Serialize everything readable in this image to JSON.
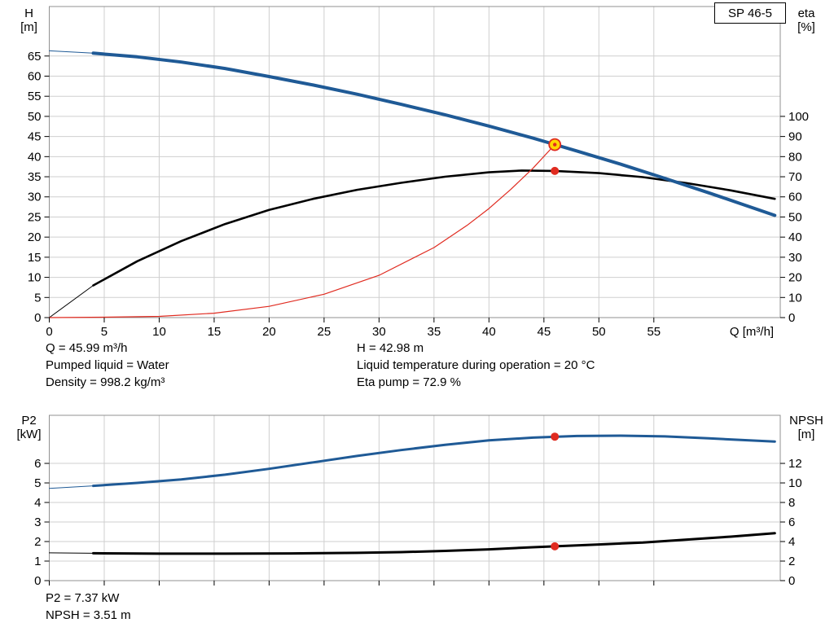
{
  "window": {
    "pump_model": "SP 46-5"
  },
  "colors": {
    "curve_blue": "#1f5a96",
    "curve_black": "#000000",
    "curve_red": "#e02b20",
    "dot_red": "#e02b20",
    "op_fill": "#ffd800",
    "grid": "#cfcfcf",
    "frame": "#909090",
    "axis_tick": "#000000"
  },
  "info_top": {
    "left": [
      "Q = 45.99 m³/h",
      "Pumped liquid = Water",
      "Density = 998.2 kg/m³"
    ],
    "right": [
      "H = 42.98 m",
      "Liquid temperature during operation = 20 °C",
      "Eta pump = 72.9 %"
    ]
  },
  "info_bottom": {
    "lines": [
      "P2 = 7.37 kW",
      "NPSH = 3.51 m"
    ]
  },
  "chart_data": [
    {
      "type": "line",
      "title": "SP 46-5",
      "x_axis": {
        "label": "Q [m³/h]",
        "min": 0,
        "max": 66.5,
        "ticks": [
          0,
          5,
          10,
          15,
          20,
          25,
          30,
          35,
          40,
          45,
          50,
          55
        ],
        "show_labels": true
      },
      "y_left": {
        "label": [
          "H",
          "[m]"
        ],
        "min": 0,
        "max": 77.3,
        "ticks": [
          0,
          5,
          10,
          15,
          20,
          25,
          30,
          35,
          40,
          45,
          50,
          55,
          60,
          65
        ]
      },
      "y_right": {
        "label": [
          "eta",
          "[%]"
        ],
        "ticks": [
          0,
          10,
          20,
          30,
          40,
          50,
          60,
          70,
          80,
          90,
          100
        ],
        "to_left": 0.5
      },
      "series": [
        {
          "name": "eta-curve-lead",
          "axis": "right",
          "color": "curve_black",
          "width": 1,
          "points": [
            [
              0,
              0
            ],
            [
              4,
              16
            ]
          ]
        },
        {
          "name": "eta-curve",
          "axis": "right",
          "color": "curve_black",
          "width": 2.6,
          "points": [
            [
              4,
              16
            ],
            [
              8,
              28
            ],
            [
              12,
              38
            ],
            [
              16,
              46.5
            ],
            [
              20,
              53.5
            ],
            [
              24,
              59
            ],
            [
              28,
              63.5
            ],
            [
              32,
              67
            ],
            [
              36,
              70
            ],
            [
              40,
              72.2
            ],
            [
              43,
              73.1
            ],
            [
              46,
              72.9
            ],
            [
              50,
              71.8
            ],
            [
              54,
              69.8
            ],
            [
              58,
              66.8
            ],
            [
              62,
              63.2
            ],
            [
              66,
              59
            ]
          ]
        },
        {
          "name": "system-curve",
          "axis": "left",
          "color": "curve_red",
          "width": 1.2,
          "points": [
            [
              0,
              0
            ],
            [
              5,
              0.1
            ],
            [
              10,
              0.3
            ],
            [
              15,
              1.1
            ],
            [
              20,
              2.8
            ],
            [
              25,
              5.8
            ],
            [
              30,
              10.5
            ],
            [
              35,
              17.4
            ],
            [
              38,
              22.9
            ],
            [
              40,
              27.1
            ],
            [
              42,
              31.9
            ],
            [
              44,
              37.1
            ],
            [
              45.99,
              42.98
            ]
          ]
        },
        {
          "name": "head-curve-lead",
          "axis": "left",
          "color": "curve_blue",
          "width": 1,
          "points": [
            [
              0,
              66.3
            ],
            [
              4,
              65.7
            ]
          ]
        },
        {
          "name": "head-curve",
          "axis": "left",
          "color": "curve_blue",
          "width": 4,
          "points": [
            [
              4,
              65.7
            ],
            [
              8,
              64.8
            ],
            [
              12,
              63.5
            ],
            [
              16,
              61.9
            ],
            [
              20,
              59.9
            ],
            [
              24,
              57.8
            ],
            [
              28,
              55.5
            ],
            [
              32,
              53
            ],
            [
              36,
              50.4
            ],
            [
              40,
              47.6
            ],
            [
              44,
              44.6
            ],
            [
              46,
              43
            ],
            [
              48,
              41.4
            ],
            [
              52,
              38.1
            ],
            [
              56,
              34.6
            ],
            [
              60,
              31
            ],
            [
              63,
              28.2
            ],
            [
              66,
              25.4
            ]
          ]
        }
      ],
      "markers": [
        {
          "name": "eta-point",
          "kind": "dot",
          "axis": "right",
          "x": 45.99,
          "y": 72.9
        },
        {
          "name": "duty-point",
          "kind": "duty",
          "axis": "left",
          "x": 45.99,
          "y": 42.98
        }
      ]
    },
    {
      "type": "line",
      "title": "P2 / NPSH",
      "x_axis": {
        "label": "",
        "min": 0,
        "max": 66.5,
        "ticks": [
          0,
          5,
          10,
          15,
          20,
          25,
          30,
          35,
          40,
          45,
          50,
          55
        ],
        "show_labels": false
      },
      "y_left": {
        "label": [
          "P2",
          "[kW]"
        ],
        "min": 0,
        "max": 8.46,
        "ticks": [
          0,
          1,
          2,
          3,
          4,
          5,
          6
        ]
      },
      "y_right": {
        "label": [
          "NPSH",
          "[m]"
        ],
        "ticks": [
          0,
          2,
          4,
          6,
          8,
          10,
          12
        ],
        "to_left": 0.5
      },
      "series": [
        {
          "name": "npsh-curve-lead",
          "axis": "right",
          "color": "curve_black",
          "width": 1,
          "points": [
            [
              0,
              2.84
            ],
            [
              4,
              2.8
            ]
          ]
        },
        {
          "name": "npsh-curve",
          "axis": "right",
          "color": "curve_black",
          "width": 3,
          "points": [
            [
              4,
              2.8
            ],
            [
              10,
              2.76
            ],
            [
              16,
              2.76
            ],
            [
              22,
              2.78
            ],
            [
              28,
              2.84
            ],
            [
              32,
              2.92
            ],
            [
              36,
              3.04
            ],
            [
              40,
              3.2
            ],
            [
              44,
              3.42
            ],
            [
              46,
              3.51
            ],
            [
              50,
              3.7
            ],
            [
              54,
              3.9
            ],
            [
              58,
              4.2
            ],
            [
              62,
              4.5
            ],
            [
              66,
              4.85
            ]
          ]
        },
        {
          "name": "p2-curve-lead",
          "axis": "left",
          "color": "curve_blue",
          "width": 1,
          "points": [
            [
              0,
              4.72
            ],
            [
              4,
              4.85
            ]
          ]
        },
        {
          "name": "p2-curve",
          "axis": "left",
          "color": "curve_blue",
          "width": 3,
          "points": [
            [
              4,
              4.85
            ],
            [
              8,
              5
            ],
            [
              12,
              5.18
            ],
            [
              16,
              5.42
            ],
            [
              20,
              5.72
            ],
            [
              24,
              6.05
            ],
            [
              28,
              6.38
            ],
            [
              32,
              6.68
            ],
            [
              36,
              6.95
            ],
            [
              40,
              7.18
            ],
            [
              44,
              7.32
            ],
            [
              48,
              7.4
            ],
            [
              52,
              7.42
            ],
            [
              56,
              7.38
            ],
            [
              60,
              7.28
            ],
            [
              66,
              7.12
            ]
          ]
        }
      ],
      "markers": [
        {
          "name": "p2-point",
          "kind": "dot",
          "axis": "left",
          "x": 45.99,
          "y": 7.37
        },
        {
          "name": "npsh-point",
          "kind": "dot",
          "axis": "right",
          "x": 45.99,
          "y": 3.51
        }
      ]
    }
  ]
}
